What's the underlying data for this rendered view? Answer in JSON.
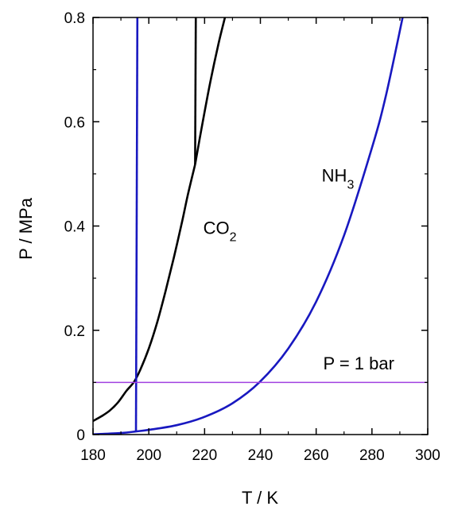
{
  "chart_data": {
    "type": "line",
    "xlabel": "T / K",
    "ylabel": "P / MPa",
    "xlim": [
      180,
      300
    ],
    "ylim": [
      0,
      0.8
    ],
    "xticks": [
      180,
      200,
      220,
      240,
      260,
      280,
      300
    ],
    "yticks": [
      0,
      0.2,
      0.4,
      0.6,
      0.8
    ],
    "ytick_labels": [
      "0",
      "0.2",
      "0.4",
      "0.6",
      "0.8"
    ],
    "grid": false,
    "series": [
      {
        "key": "co2-sublimation",
        "color": "#000000",
        "x": [
          180,
          183,
          186,
          189,
          192,
          194.7,
          197,
          200,
          203,
          206,
          209,
          212,
          214,
          216.6
        ],
        "y": [
          0.026,
          0.035,
          0.046,
          0.062,
          0.084,
          0.101,
          0.125,
          0.165,
          0.215,
          0.275,
          0.34,
          0.41,
          0.46,
          0.518
        ]
      },
      {
        "key": "co2-vaporization",
        "color": "#000000",
        "x": [
          216.6,
          219,
          222,
          225,
          227.3
        ],
        "y": [
          0.518,
          0.59,
          0.675,
          0.75,
          0.8
        ]
      },
      {
        "key": "co2-melting",
        "color": "#000000",
        "x": [
          216.6,
          216.85
        ],
        "y": [
          0.518,
          0.8
        ]
      },
      {
        "key": "nh3-melting",
        "color": "#1818c0",
        "x": [
          195.4,
          195.9
        ],
        "y": [
          0.006,
          0.8
        ]
      },
      {
        "key": "nh3-vaporization",
        "color": "#1818c0",
        "x": [
          180,
          190,
          195.4,
          200,
          210,
          220,
          230,
          239.8,
          250,
          260,
          270,
          280,
          285,
          291
        ],
        "y": [
          0.0005,
          0.003,
          0.006,
          0.009,
          0.018,
          0.034,
          0.06,
          0.101,
          0.165,
          0.255,
          0.382,
          0.55,
          0.65,
          0.8
        ]
      },
      {
        "key": "pressure-1-bar",
        "color": "#a040e0",
        "x": [
          180,
          300
        ],
        "y": [
          0.1,
          0.1
        ]
      }
    ],
    "annotations": [
      {
        "key": "co2",
        "main": "CO",
        "sub": "2",
        "x": 219.5,
        "y": 0.385
      },
      {
        "key": "nh3",
        "main": "NH",
        "sub": "3",
        "x": 262,
        "y": 0.485
      },
      {
        "key": "one-bar",
        "main": "P = 1 bar",
        "sub": "",
        "x": 262.5,
        "y": 0.125
      }
    ]
  }
}
